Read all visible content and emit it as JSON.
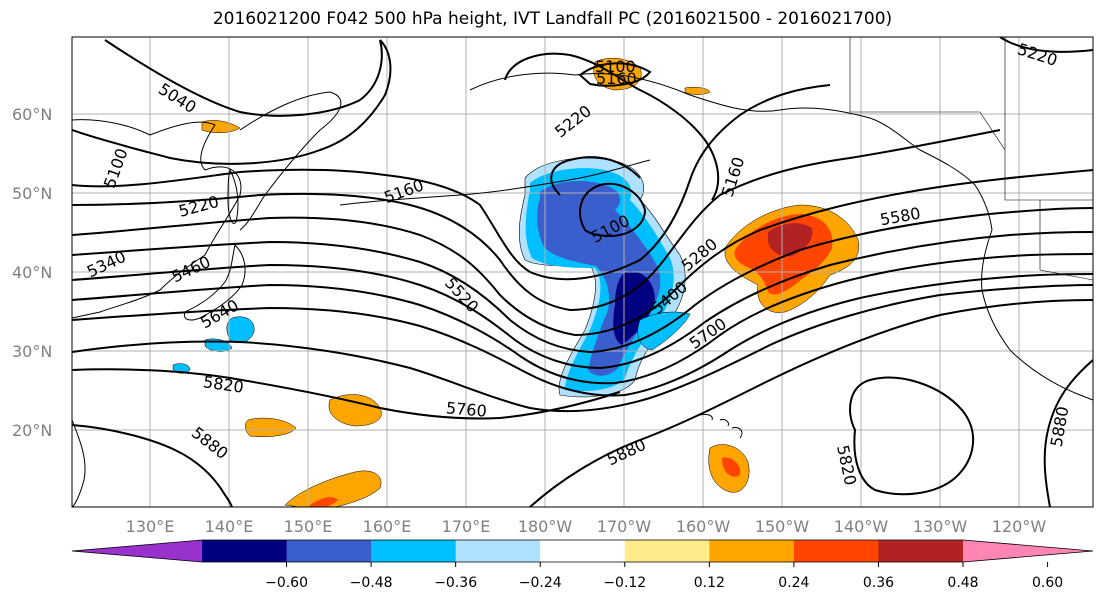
{
  "title": "2016021200 F042 500 hPa height, IVT Landfall PC (2016021500 - 2016021700)",
  "map": {
    "lon_labels": [
      "130°E",
      "140°E",
      "150°E",
      "160°E",
      "170°E",
      "180°W",
      "170°W",
      "160°W",
      "150°W",
      "140°W",
      "130°W",
      "120°W"
    ],
    "lat_labels": [
      "20°N",
      "30°N",
      "40°N",
      "50°N",
      "60°N"
    ],
    "contour_labels": [
      "5040",
      "5100",
      "5220",
      "5340",
      "5460",
      "5640",
      "5820",
      "5880",
      "5100",
      "5160",
      "5220",
      "5160",
      "5100",
      "5160",
      "5280",
      "5400",
      "5520",
      "5580",
      "5700",
      "5760",
      "5880",
      "5820",
      "5880",
      "5220"
    ]
  },
  "colorbar": {
    "colors": [
      "#9932cc",
      "#000080",
      "#3a5fcd",
      "#00bfff",
      "#b0e2ff",
      "#ffffff",
      "#ffeb8a",
      "#ffa500",
      "#ff4500",
      "#b22222",
      "#ff85b5"
    ],
    "ticks": [
      "−0.60",
      "−0.48",
      "−0.36",
      "−0.24",
      "−0.12",
      "0.12",
      "0.24",
      "0.36",
      "0.48",
      "0.60"
    ]
  }
}
